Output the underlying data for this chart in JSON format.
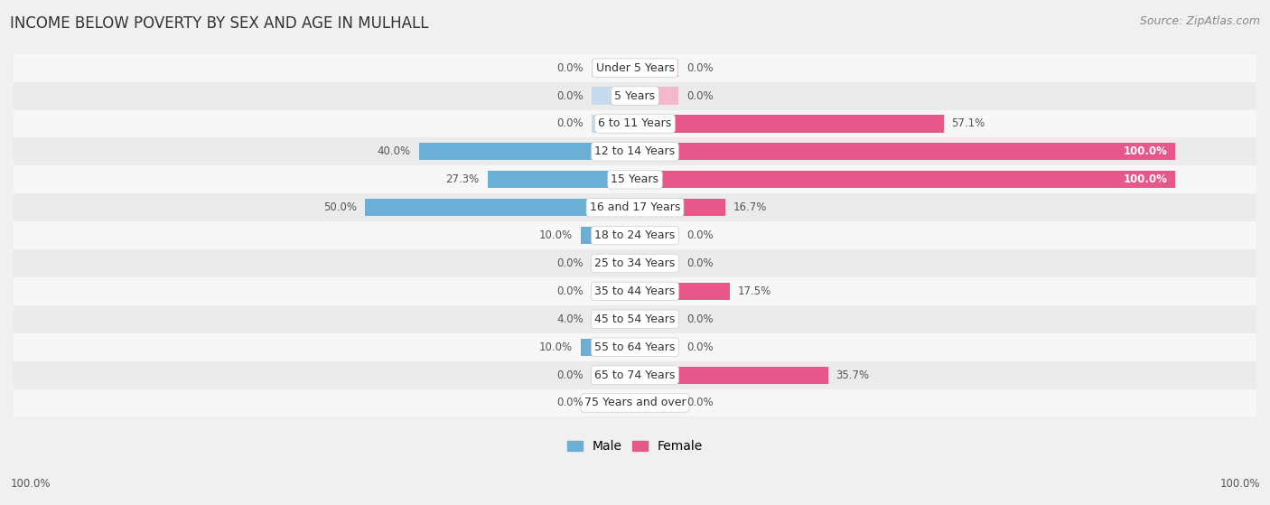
{
  "title": "INCOME BELOW POVERTY BY SEX AND AGE IN MULHALL",
  "source": "Source: ZipAtlas.com",
  "categories": [
    "Under 5 Years",
    "5 Years",
    "6 to 11 Years",
    "12 to 14 Years",
    "15 Years",
    "16 and 17 Years",
    "18 to 24 Years",
    "25 to 34 Years",
    "35 to 44 Years",
    "45 to 54 Years",
    "55 to 64 Years",
    "65 to 74 Years",
    "75 Years and over"
  ],
  "male_values": [
    0.0,
    0.0,
    0.0,
    40.0,
    27.3,
    50.0,
    10.0,
    0.0,
    0.0,
    4.0,
    10.0,
    0.0,
    0.0
  ],
  "female_values": [
    0.0,
    0.0,
    57.1,
    100.0,
    100.0,
    16.7,
    0.0,
    0.0,
    17.5,
    0.0,
    0.0,
    35.7,
    0.0
  ],
  "male_color_bright": "#6baed6",
  "male_color_light": "#c6dbef",
  "female_color_bright": "#e8578a",
  "female_color_light": "#f4b8cc",
  "male_label": "Male",
  "female_label": "Female",
  "bg_color": "#f0f0f0",
  "row_color_odd": "#f7f7f7",
  "row_color_even": "#ebebeb",
  "label_box_color": "#ffffff",
  "title_fontsize": 12,
  "source_fontsize": 9,
  "cat_fontsize": 9,
  "value_fontsize": 8.5,
  "max_value": 100.0,
  "stub_value": 8.0,
  "bottom_left_label": "100.0%",
  "bottom_right_label": "100.0%"
}
